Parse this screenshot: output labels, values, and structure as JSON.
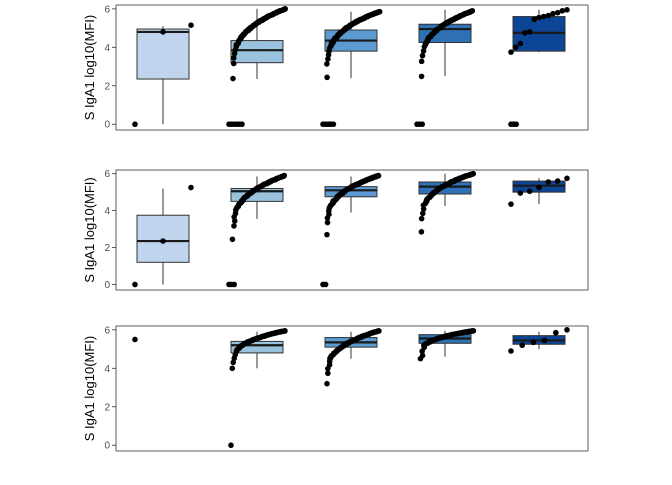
{
  "chart_data": [
    {
      "type": "box",
      "ylabel": "S IgA1 log10(MFI)",
      "ylim": [
        -0.3,
        6.2
      ],
      "yticks": [
        0,
        2,
        4,
        6
      ],
      "groups": [
        {
          "fill": "#c0d4ed",
          "box": {
            "q1": 2.35,
            "median": 4.8,
            "q3": 4.95,
            "whisker_low": 0.0,
            "whisker_high": 5.1
          },
          "points": [
            0.0,
            4.8,
            5.15
          ]
        },
        {
          "fill": "#99c2df",
          "box": {
            "q1": 3.2,
            "median": 3.85,
            "q3": 4.35,
            "whisker_low": 2.35,
            "whisker_high": 6.0
          },
          "points_band": {
            "y_min": 2.3,
            "y_max": 6.0,
            "n": 80
          },
          "zero_points": 6
        },
        {
          "fill": "#5b9bd1",
          "box": {
            "q1": 3.8,
            "median": 4.35,
            "q3": 4.9,
            "whisker_low": 2.4,
            "whisker_high": 5.85
          },
          "points_band": {
            "y_min": 2.4,
            "y_max": 5.85,
            "n": 90
          },
          "zero_points": 5
        },
        {
          "fill": "#2e72b5",
          "box": {
            "q1": 4.25,
            "median": 4.95,
            "q3": 5.2,
            "whisker_low": 2.5,
            "whisker_high": 5.95
          },
          "points_band": {
            "y_min": 2.45,
            "y_max": 5.9,
            "n": 70
          },
          "zero_points": 3
        },
        {
          "fill": "#0d4596",
          "box": {
            "q1": 3.8,
            "median": 4.75,
            "q3": 5.6,
            "whisker_low": 3.75,
            "whisker_high": 5.95
          },
          "points": [
            3.75,
            4.0,
            4.2,
            4.75,
            4.8,
            5.45,
            5.55,
            5.6,
            5.65,
            5.75,
            5.8,
            5.9,
            5.95
          ],
          "zero_points": 3
        }
      ]
    },
    {
      "type": "box",
      "ylabel": "S IgA1 log10(MFI)",
      "ylim": [
        -0.3,
        6.2
      ],
      "yticks": [
        0,
        2,
        4,
        6
      ],
      "groups": [
        {
          "fill": "#c0d4ed",
          "box": {
            "q1": 1.2,
            "median": 2.35,
            "q3": 3.75,
            "whisker_low": 0.0,
            "whisker_high": 5.2
          },
          "points": [
            0.0,
            2.35,
            5.25
          ]
        },
        {
          "fill": "#99c2df",
          "box": {
            "q1": 4.5,
            "median": 5.05,
            "q3": 5.2,
            "whisker_low": 3.55,
            "whisker_high": 5.85
          },
          "points_band": {
            "y_min": 2.4,
            "y_max": 5.9,
            "n": 85
          },
          "zero_points": 3
        },
        {
          "fill": "#5b9bd1",
          "box": {
            "q1": 4.75,
            "median": 5.1,
            "q3": 5.3,
            "whisker_low": 3.9,
            "whisker_high": 5.85
          },
          "points_band": {
            "y_min": 2.7,
            "y_max": 5.9,
            "n": 90
          },
          "zero_points": 2
        },
        {
          "fill": "#2e72b5",
          "box": {
            "q1": 4.9,
            "median": 5.3,
            "q3": 5.55,
            "whisker_low": 4.25,
            "whisker_high": 6.0
          },
          "points_band": {
            "y_min": 2.85,
            "y_max": 6.0,
            "n": 70
          },
          "zero_points": 0
        },
        {
          "fill": "#0d4596",
          "box": {
            "q1": 5.0,
            "median": 5.35,
            "q3": 5.6,
            "whisker_low": 4.35,
            "whisker_high": 5.75
          },
          "points": [
            4.35,
            4.95,
            5.05,
            5.25,
            5.55,
            5.6,
            5.75
          ],
          "zero_points": 0
        }
      ]
    },
    {
      "type": "box",
      "ylabel": "S IgA1 log10(MFI)",
      "ylim": [
        -0.3,
        6.2
      ],
      "yticks": [
        0,
        2,
        4,
        6
      ],
      "groups": [
        {
          "fill": "#c0d4ed",
          "box": null,
          "points": [
            5.5
          ]
        },
        {
          "fill": "#99c2df",
          "box": {
            "q1": 4.8,
            "median": 5.2,
            "q3": 5.4,
            "whisker_low": 4.0,
            "whisker_high": 5.9
          },
          "points_band": {
            "y_min": 4.0,
            "y_max": 5.95,
            "n": 70
          },
          "extra_points": [
            0.0
          ]
        },
        {
          "fill": "#5b9bd1",
          "box": {
            "q1": 5.1,
            "median": 5.35,
            "q3": 5.6,
            "whisker_low": 4.5,
            "whisker_high": 5.9
          },
          "points_band": {
            "y_min": 3.2,
            "y_max": 5.95,
            "n": 80
          }
        },
        {
          "fill": "#2e72b5",
          "box": {
            "q1": 5.3,
            "median": 5.55,
            "q3": 5.75,
            "whisker_low": 4.6,
            "whisker_high": 5.95
          },
          "points_band": {
            "y_min": 4.5,
            "y_max": 5.95,
            "n": 60
          }
        },
        {
          "fill": "#0d4596",
          "box": {
            "q1": 5.25,
            "median": 5.45,
            "q3": 5.7,
            "whisker_low": 5.0,
            "whisker_high": 5.9
          },
          "points": [
            4.9,
            5.2,
            5.35,
            5.45,
            5.85,
            6.0
          ]
        }
      ]
    }
  ]
}
